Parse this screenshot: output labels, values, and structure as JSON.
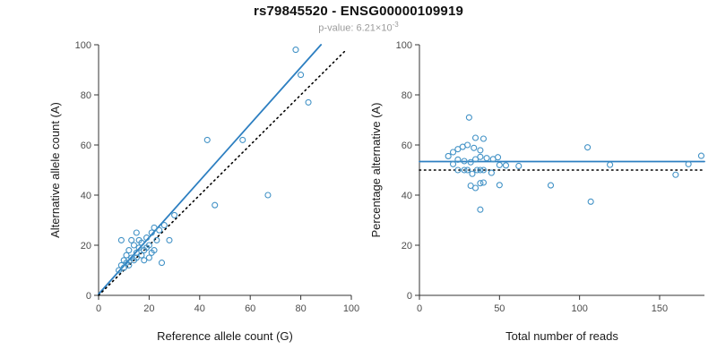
{
  "header": {
    "title": "rs79845520 - ENSG00000109919",
    "subtitle_prefix": "p-value: 6.21×10",
    "subtitle_exponent": "-3"
  },
  "colors": {
    "point_stroke": "#4292c6",
    "fit_line": "#2d7fc1",
    "dotted_line": "#000000",
    "axis": "#333333",
    "tick_label": "#4d4d4d",
    "axis_title": "#1a1a1a",
    "subtitle": "#9b9b9b"
  },
  "chart_data": [
    {
      "type": "scatter",
      "title": "",
      "xlabel": "Reference allele count (G)",
      "ylabel": "Alternative allele count (A)",
      "xlim": [
        0,
        100
      ],
      "ylim": [
        0,
        100
      ],
      "xticks": [
        0,
        20,
        40,
        60,
        80,
        100
      ],
      "yticks": [
        0,
        20,
        40,
        60,
        80,
        100
      ],
      "grid": false,
      "legend": "none",
      "points": [
        [
          8,
          10
        ],
        [
          9,
          12
        ],
        [
          9,
          22
        ],
        [
          10,
          11
        ],
        [
          10,
          14
        ],
        [
          11,
          13
        ],
        [
          11,
          16
        ],
        [
          12,
          12
        ],
        [
          12,
          18
        ],
        [
          13,
          15
        ],
        [
          13,
          22
        ],
        [
          14,
          14
        ],
        [
          14,
          20
        ],
        [
          15,
          15
        ],
        [
          15,
          17
        ],
        [
          15,
          25
        ],
        [
          16,
          19
        ],
        [
          16,
          22
        ],
        [
          17,
          16
        ],
        [
          17,
          21
        ],
        [
          18,
          14
        ],
        [
          18,
          18
        ],
        [
          19,
          19
        ],
        [
          19,
          23
        ],
        [
          20,
          15
        ],
        [
          20,
          20
        ],
        [
          21,
          17
        ],
        [
          21,
          25
        ],
        [
          22,
          18
        ],
        [
          22,
          27
        ],
        [
          23,
          22
        ],
        [
          24,
          26
        ],
        [
          25,
          13
        ],
        [
          26,
          28
        ],
        [
          28,
          22
        ],
        [
          30,
          32
        ],
        [
          43,
          62
        ],
        [
          46,
          36
        ],
        [
          57,
          62
        ],
        [
          67,
          40
        ],
        [
          78,
          98
        ],
        [
          80,
          88
        ],
        [
          83,
          77
        ]
      ],
      "lines": [
        {
          "name": "regression-line",
          "x1": 0,
          "y1": 0.5,
          "x2": 88,
          "y2": 100,
          "color": "#2d7fc1",
          "style": "solid"
        },
        {
          "name": "identity-line",
          "x1": 0,
          "y1": 0,
          "x2": 98,
          "y2": 98,
          "color": "#000000",
          "style": "dotted"
        }
      ]
    },
    {
      "type": "scatter",
      "title": "",
      "xlabel": "Total number of reads",
      "ylabel": "Percentage alternative (A)",
      "xlim": [
        0,
        178
      ],
      "ylim": [
        0,
        100
      ],
      "xticks": [
        0,
        50,
        100,
        150
      ],
      "yticks": [
        0,
        20,
        40,
        60,
        80,
        100
      ],
      "grid": false,
      "legend": "none",
      "points_from": "chart 0: x = ref+alt, y = alt/(ref+alt)*100",
      "lines": [
        {
          "name": "mean-line",
          "x1": 0,
          "y1": 53.4,
          "x2": 178,
          "y2": 53.4,
          "color": "#2d7fc1",
          "style": "solid"
        },
        {
          "name": "reference-line",
          "x1": 0,
          "y1": 50,
          "x2": 178,
          "y2": 50,
          "color": "#000000",
          "style": "dotted"
        }
      ]
    }
  ]
}
